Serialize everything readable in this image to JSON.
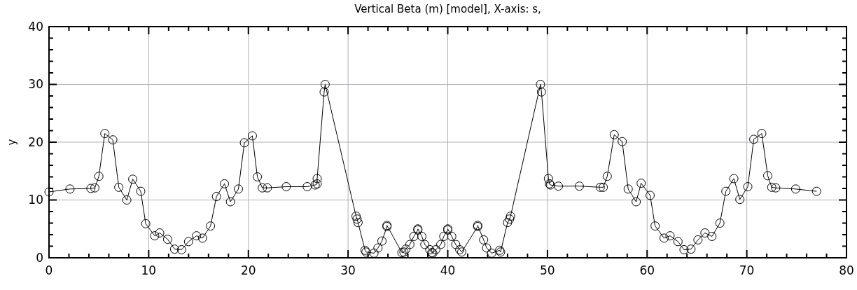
{
  "chart_data": {
    "type": "line",
    "title": "Vertical Beta (m) [model], X-axis: s,",
    "ylabel": "y",
    "marker": "circle",
    "grid": true,
    "xlim": [
      0,
      80
    ],
    "ylim": [
      0,
      40
    ],
    "xticks": [
      0,
      {
        "value": 2,
        "label": null
      },
      {
        "value": 4,
        "label": null
      },
      {
        "value": 6,
        "label": null
      },
      {
        "value": 8,
        "label": null
      },
      10,
      {
        "value": 12,
        "label": null
      },
      {
        "value": 14,
        "label": null
      },
      {
        "value": 16,
        "label": null
      },
      {
        "value": 18,
        "label": null
      },
      20,
      {
        "value": 22,
        "label": null
      },
      {
        "value": 24,
        "label": null
      },
      {
        "value": 26,
        "label": null
      },
      {
        "value": 28,
        "label": null
      },
      30,
      {
        "value": 32,
        "label": null
      },
      {
        "value": 34,
        "label": null
      },
      {
        "value": 36,
        "label": null
      },
      {
        "value": 38,
        "label": null
      },
      40,
      {
        "value": 42,
        "label": null
      },
      {
        "value": 44,
        "label": null
      },
      {
        "value": 46,
        "label": null
      },
      {
        "value": 48,
        "label": null
      },
      50,
      {
        "value": 52,
        "label": null
      },
      {
        "value": 54,
        "label": null
      },
      {
        "value": 56,
        "label": null
      },
      {
        "value": 58,
        "label": null
      },
      60,
      {
        "value": 62,
        "label": null
      },
      {
        "value": 64,
        "label": null
      },
      {
        "value": 66,
        "label": null
      },
      {
        "value": 68,
        "label": null
      },
      70,
      {
        "value": 72,
        "label": null
      },
      {
        "value": 74,
        "label": null
      },
      {
        "value": 76,
        "label": null
      },
      {
        "value": 78,
        "label": null
      },
      80
    ],
    "yticks": [
      0,
      {
        "value": 2,
        "label": null
      },
      {
        "value": 4,
        "label": null
      },
      {
        "value": 6,
        "label": null
      },
      {
        "value": 8,
        "label": null
      },
      10,
      {
        "value": 12,
        "label": null
      },
      {
        "value": 14,
        "label": null
      },
      {
        "value": 16,
        "label": null
      },
      {
        "value": 18,
        "label": null
      },
      20,
      {
        "value": 22,
        "label": null
      },
      {
        "value": 24,
        "label": null
      },
      {
        "value": 26,
        "label": null
      },
      {
        "value": 28,
        "label": null
      },
      30,
      {
        "value": 32,
        "label": null
      },
      {
        "value": 34,
        "label": null
      },
      {
        "value": 36,
        "label": null
      },
      {
        "value": 38,
        "label": null
      },
      40
    ],
    "series": [
      {
        "color": "#000000",
        "x": [
          0,
          2.1,
          4.2,
          4.6,
          5.0,
          5.6,
          6.4,
          7.0,
          7.8,
          8.4,
          9.2,
          9.7,
          10.6,
          11.1,
          11.9,
          12.6,
          13.3,
          14.0,
          14.8,
          15.4,
          16.2,
          16.8,
          17.6,
          18.2,
          19.0,
          19.6,
          20.4,
          20.9,
          21.4,
          21.9,
          23.8,
          25.9,
          26.7,
          26.9,
          26.9,
          27.6,
          27.7,
          30.8,
          30.9,
          31.0,
          31.7,
          31.8,
          32.6,
          33.0,
          33.4,
          33.9,
          33.9,
          35.4,
          35.6,
          35.8,
          36.2,
          36.6,
          37.0,
          37.0,
          37.4,
          37.7,
          38.2,
          38.4,
          38.5,
          38.8,
          39.3,
          39.6,
          40.0,
          40.0,
          40.4,
          40.8,
          41.2,
          41.4,
          43.0,
          43.0,
          43.6,
          43.9,
          44.4,
          45.2,
          45.3,
          46.0,
          46.2,
          46.3,
          49.3,
          49.4,
          50.1,
          50.2,
          50.3,
          51.1,
          53.2,
          55.3,
          55.6,
          56.0,
          56.7,
          57.5,
          58.1,
          58.9,
          59.4,
          60.3,
          60.8,
          61.7,
          62.3,
          63.1,
          63.7,
          64.4,
          65.1,
          65.8,
          66.5,
          67.3,
          67.9,
          68.7,
          69.3,
          70.1,
          70.7,
          71.5,
          72.1,
          72.5,
          72.9,
          74.9,
          77.0
        ],
        "values": [
          11.4,
          11.9,
          12.0,
          12.1,
          14.1,
          21.5,
          20.4,
          12.2,
          10.0,
          13.6,
          11.5,
          5.9,
          3.8,
          4.3,
          3.2,
          1.5,
          1.4,
          2.8,
          3.8,
          3.4,
          5.5,
          10.6,
          12.8,
          9.7,
          11.9,
          19.9,
          21.1,
          14.0,
          12.1,
          12.1,
          12.3,
          12.3,
          12.6,
          12.8,
          13.7,
          28.7,
          30.0,
          7.2,
          6.7,
          6.1,
          1.3,
          1.0,
          0.8,
          1.7,
          2.9,
          5.4,
          5.6,
          0.9,
          1.0,
          1.5,
          2.3,
          3.7,
          4.8,
          5.0,
          3.7,
          2.3,
          1.4,
          0.9,
          0.8,
          1.4,
          2.3,
          3.7,
          4.8,
          5.0,
          3.7,
          2.3,
          1.4,
          1.0,
          5.4,
          5.6,
          3.1,
          1.7,
          0.8,
          1.3,
          1.0,
          6.1,
          6.7,
          7.2,
          30.0,
          28.7,
          13.7,
          12.8,
          12.6,
          12.4,
          12.4,
          12.2,
          12.2,
          14.1,
          21.3,
          20.1,
          11.9,
          9.7,
          12.9,
          10.8,
          5.5,
          3.4,
          3.8,
          2.8,
          1.4,
          1.5,
          3.1,
          4.3,
          3.7,
          6.0,
          11.5,
          13.7,
          10.1,
          12.3,
          20.5,
          21.5,
          14.2,
          12.2,
          12.1,
          11.9,
          11.5
        ]
      }
    ]
  }
}
